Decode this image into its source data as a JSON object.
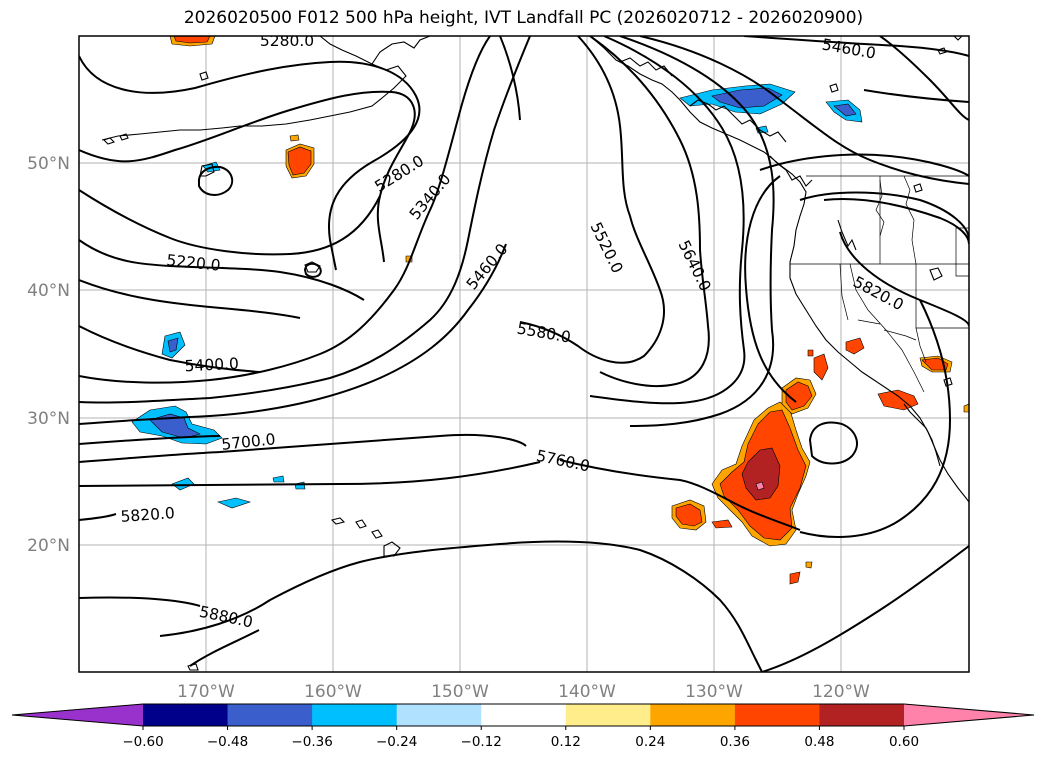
{
  "title": "2026020500 F012 500 hPa height, IVT Landfall PC (2026020712 - 2026020900)",
  "axes": {
    "lon_labels": [
      "170°W",
      "160°W",
      "150°W",
      "140°W",
      "130°W",
      "120°W"
    ],
    "lat_labels": [
      "50°N",
      "40°N",
      "30°N",
      "20°N"
    ]
  },
  "contour_labels": {
    "c5280a": "5280.0",
    "c5460a": "5460.0",
    "c5280b": "5280.0",
    "c5340": "5340.0",
    "c5520": "5520.0",
    "c5640": "5640.0",
    "c5220": "5220.0",
    "c5460b": "5460.0",
    "c5820a": "5820.0",
    "c5580": "5580.0",
    "c5400": "5400.0",
    "c5700": "5700.0",
    "c5760": "5760.0",
    "c5820b": "5820.0",
    "c5880": "5880.0"
  },
  "colorbar": {
    "ticks": [
      "−0.60",
      "−0.48",
      "−0.36",
      "−0.24",
      "−0.12",
      "0.12",
      "0.24",
      "0.36",
      "0.48",
      "0.60"
    ],
    "colors": [
      "#9932cc",
      "#00008b",
      "#3a5fcd",
      "#00bfff",
      "#b0e2ff",
      "#ffffff",
      "#ffec8b",
      "#ffa500",
      "#ff4500",
      "#b22222",
      "#ff82ab"
    ]
  }
}
